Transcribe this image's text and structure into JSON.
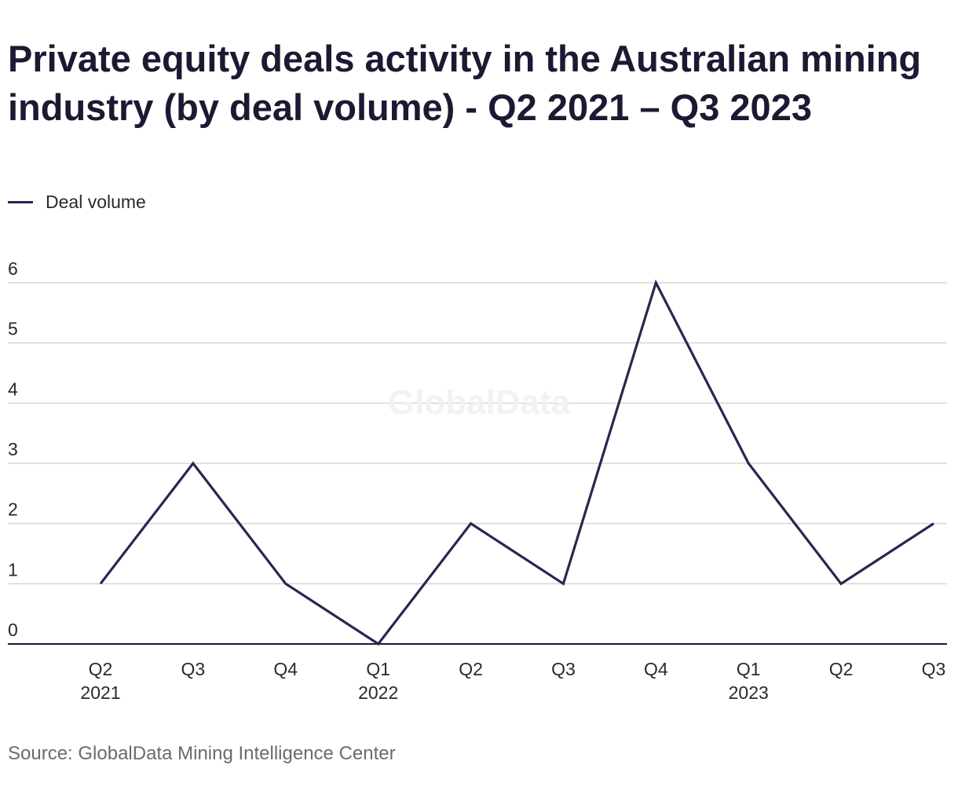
{
  "chart_data": {
    "type": "line",
    "title": "Private equity deals activity in the Australian mining industry (by deal volume) - Q2 2021 – Q3 2023",
    "categories": [
      "Q2 2021",
      "Q3 2021",
      "Q4 2021",
      "Q1 2022",
      "Q2 2022",
      "Q3 2022",
      "Q4 2022",
      "Q1 2023",
      "Q2 2023",
      "Q3 2023"
    ],
    "tick_labels": [
      [
        "Q2",
        "2021"
      ],
      [
        "Q3"
      ],
      [
        "Q4"
      ],
      [
        "Q1",
        "2022"
      ],
      [
        "Q2"
      ],
      [
        "Q3"
      ],
      [
        "Q4"
      ],
      [
        "Q1",
        "2023"
      ],
      [
        "Q2"
      ],
      [
        "Q3"
      ]
    ],
    "series": [
      {
        "name": "Deal volume",
        "values": [
          1,
          3,
          1,
          0,
          2,
          1,
          6,
          3,
          1,
          2
        ],
        "color": "#33224f"
      }
    ],
    "ylim": [
      0,
      6
    ],
    "yticks": [
      0,
      1,
      2,
      3,
      4,
      5,
      6
    ],
    "xlabel": "",
    "ylabel": "",
    "grid": true,
    "legend_position": "top-left",
    "source": "Source: GlobalData Mining Intelligence Center",
    "watermark": "GlobalData"
  }
}
